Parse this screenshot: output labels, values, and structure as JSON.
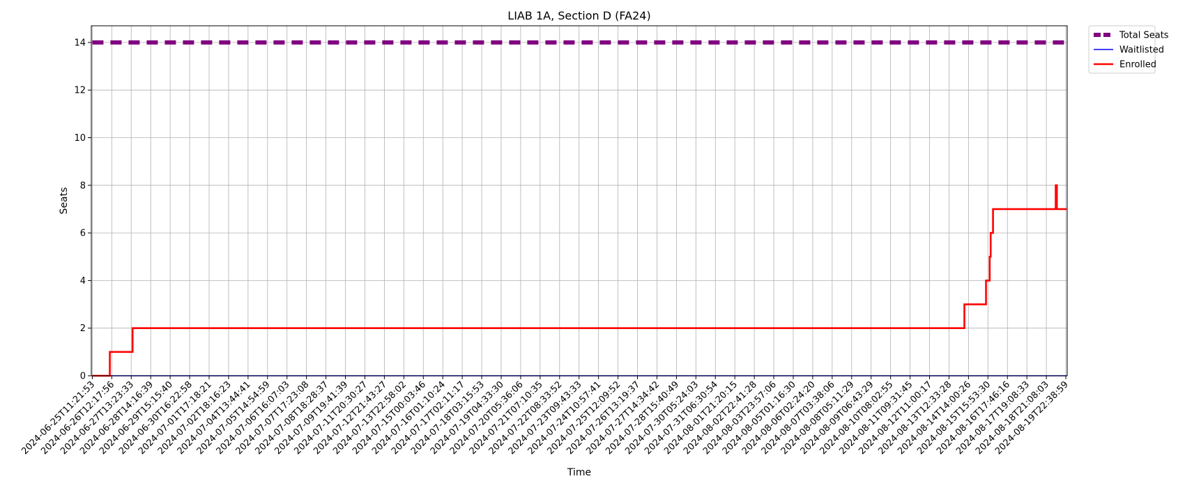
{
  "chart_data": {
    "type": "line",
    "title": "LIAB 1A, Section D (FA24)",
    "xlabel": "Time",
    "ylabel": "Seats",
    "ylim": [
      0,
      14.7
    ],
    "yticks": [
      0,
      2,
      4,
      6,
      8,
      10,
      12,
      14
    ],
    "grid": true,
    "legend_position": "outside-top-right",
    "x_ticks": [
      "2024-06-25T11:21:53",
      "2024-06-26T12:17:56",
      "2024-06-27T13:23:33",
      "2024-06-28T14:16:39",
      "2024-06-29T15:15:40",
      "2024-06-30T16:22:58",
      "2024-07-01T17:18:21",
      "2024-07-02T18:16:23",
      "2024-07-04T13:44:41",
      "2024-07-05T14:54:59",
      "2024-07-06T16:07:03",
      "2024-07-07T17:23:08",
      "2024-07-08T18:28:37",
      "2024-07-09T19:41:39",
      "2024-07-11T20:30:27",
      "2024-07-12T21:43:27",
      "2024-07-13T22:58:02",
      "2024-07-15T00:03:46",
      "2024-07-16T01:10:24",
      "2024-07-17T02:11:17",
      "2024-07-18T03:15:53",
      "2024-07-19T04:33:30",
      "2024-07-20T05:36:06",
      "2024-07-21T07:10:35",
      "2024-07-22T08:33:52",
      "2024-07-23T09:43:33",
      "2024-07-24T10:57:41",
      "2024-07-25T12:09:52",
      "2024-07-26T13:19:37",
      "2024-07-27T14:34:42",
      "2024-07-28T15:40:49",
      "2024-07-30T05:24:03",
      "2024-07-31T06:30:54",
      "2024-08-01T21:20:15",
      "2024-08-02T22:41:28",
      "2024-08-03T23:57:06",
      "2024-08-05T01:16:30",
      "2024-08-06T02:24:20",
      "2024-08-07T03:38:06",
      "2024-08-08T05:11:29",
      "2024-08-09T06:43:29",
      "2024-08-10T08:02:55",
      "2024-08-11T09:31:45",
      "2024-08-12T11:00:17",
      "2024-08-13T12:33:28",
      "2024-08-14T14:00:26",
      "2024-08-15T15:53:30",
      "2024-08-16T17:46:16",
      "2024-08-17T19:08:33",
      "2024-08-18T21:08:03",
      "2024-08-19T22:38:59"
    ],
    "series": [
      {
        "name": "Total Seats",
        "color": "#800080",
        "style": "dashed",
        "points": [
          [
            0,
            14
          ],
          [
            50.04,
            14
          ]
        ]
      },
      {
        "name": "Waitlisted",
        "color": "#0000ff",
        "style": "solid",
        "points": [
          [
            0,
            0
          ],
          [
            50.04,
            0
          ]
        ]
      },
      {
        "name": "Enrolled",
        "color": "#ff0000",
        "style": "step",
        "points": [
          [
            0,
            0
          ],
          [
            0.9,
            0
          ],
          [
            0.9,
            1
          ],
          [
            2.07,
            1
          ],
          [
            2.07,
            2
          ],
          [
            44.79,
            2
          ],
          [
            44.79,
            3
          ],
          [
            45.9,
            3
          ],
          [
            45.9,
            4
          ],
          [
            46.09,
            4
          ],
          [
            46.09,
            5
          ],
          [
            46.14,
            5
          ],
          [
            46.14,
            6
          ],
          [
            46.26,
            6
          ],
          [
            46.26,
            7
          ],
          [
            49.48,
            7
          ],
          [
            49.48,
            8
          ],
          [
            49.54,
            8
          ],
          [
            49.54,
            7
          ],
          [
            50.04,
            7
          ]
        ]
      }
    ]
  }
}
